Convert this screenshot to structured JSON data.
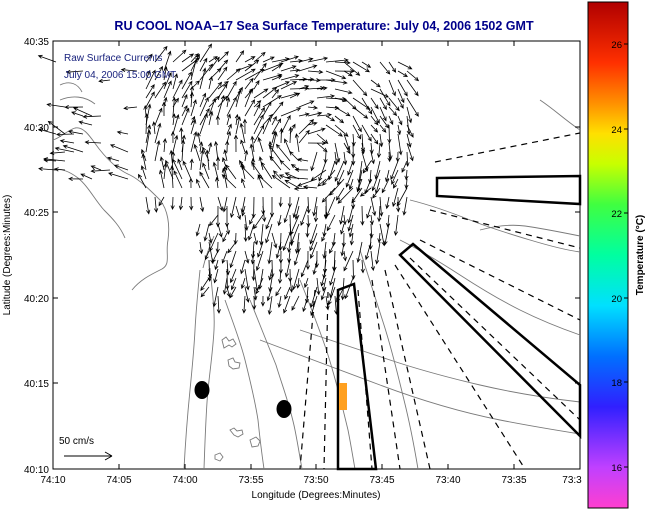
{
  "title": "RU COOL  NOAA–17  Sea Surface Temperature:  July 04, 2006 1502 GMT",
  "overlay": {
    "line1": "Raw Surface Currents",
    "line2": "July 04, 2006 15:00 GMT"
  },
  "scale": {
    "label": "50 cm/s"
  },
  "axes": {
    "xlabel": "Longitude (Degrees:Minutes)",
    "ylabel": "Latitude (Degrees:Minutes)",
    "xticks": [
      "74:10",
      "74:05",
      "74:00",
      "73:55",
      "73:50",
      "73:45",
      "73:40",
      "73:35",
      "73:3"
    ],
    "yticks": [
      "40:35",
      "40:30",
      "40:25",
      "40:20",
      "40:15",
      "40:10"
    ]
  },
  "colorbar": {
    "label": "Temperature (°C)",
    "ticks": [
      "26",
      "24",
      "22",
      "20",
      "18",
      "16"
    ]
  },
  "colors": {
    "title": "#00008b",
    "overlay": "#1a237e",
    "coast": "#7a7a7a",
    "arrow": "#000000",
    "marker_orange": "#ffa020"
  }
}
